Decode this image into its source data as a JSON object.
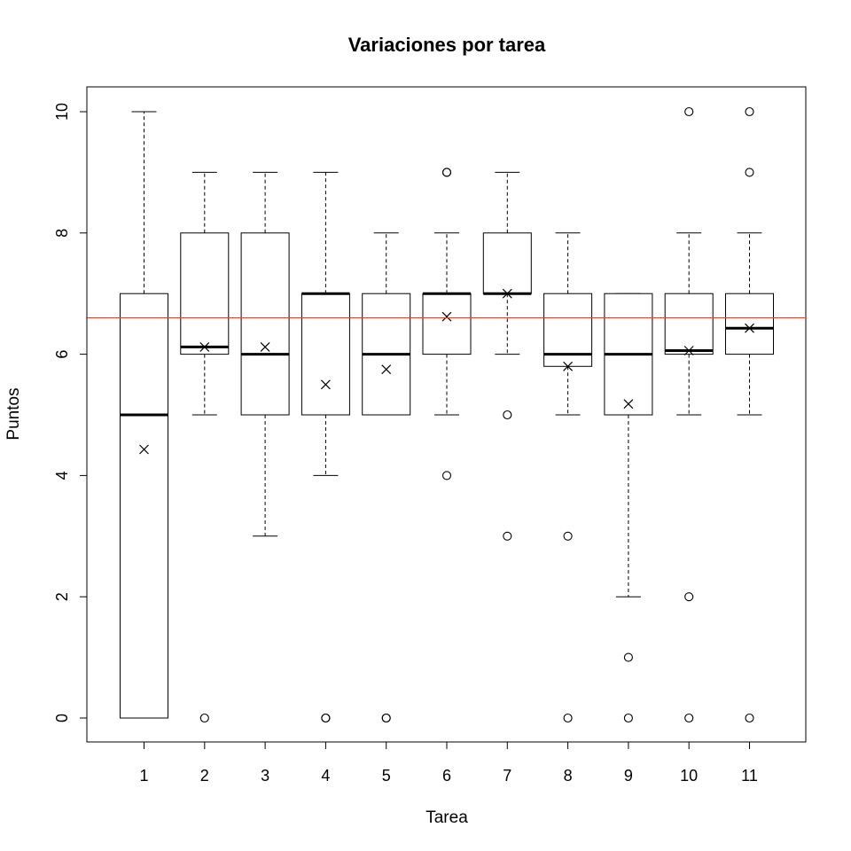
{
  "chart_data": {
    "type": "boxplot",
    "title": "Variaciones por tarea",
    "xlabel": "Tarea",
    "ylabel": "Puntos",
    "categories": [
      "1",
      "2",
      "3",
      "4",
      "5",
      "6",
      "7",
      "8",
      "9",
      "10",
      "11"
    ],
    "ylim": [
      0,
      10
    ],
    "yticks": [
      0,
      2,
      4,
      6,
      8,
      10
    ],
    "reference_line": {
      "y": 6.6,
      "color": "#e8432e"
    },
    "colors": {
      "box": "#000000",
      "outlier": "#000000",
      "mean": "#000000"
    },
    "boxes": [
      {
        "category": "1",
        "whisker_low": 0,
        "q1": 0,
        "median": 5,
        "q3": 7,
        "whisker_high": 10,
        "mean": 4.43,
        "outliers": []
      },
      {
        "category": "2",
        "whisker_low": 5,
        "q1": 6,
        "median": 6.12,
        "q3": 8,
        "whisker_high": 9,
        "mean": 6.12,
        "outliers": [
          0
        ]
      },
      {
        "category": "3",
        "whisker_low": 3,
        "q1": 5,
        "median": 6,
        "q3": 8,
        "whisker_high": 9,
        "mean": 6.12,
        "outliers": []
      },
      {
        "category": "4",
        "whisker_low": 4,
        "q1": 5,
        "median": 7,
        "q3": 7,
        "whisker_high": 9,
        "mean": 5.5,
        "outliers": [
          0,
          0
        ]
      },
      {
        "category": "5",
        "whisker_low": 5,
        "q1": 5,
        "median": 6,
        "q3": 7,
        "whisker_high": 8,
        "mean": 5.75,
        "outliers": [
          0,
          0
        ]
      },
      {
        "category": "6",
        "whisker_low": 5,
        "q1": 6,
        "median": 7,
        "q3": 7,
        "whisker_high": 8,
        "mean": 6.62,
        "outliers": [
          9,
          9,
          4
        ]
      },
      {
        "category": "7",
        "whisker_low": 6,
        "q1": 7,
        "median": 7,
        "q3": 8,
        "whisker_high": 9,
        "mean": 7.0,
        "outliers": [
          5,
          3
        ]
      },
      {
        "category": "8",
        "whisker_low": 5,
        "q1": 5.8,
        "median": 6,
        "q3": 7,
        "whisker_high": 8,
        "mean": 5.8,
        "outliers": [
          3,
          0
        ]
      },
      {
        "category": "9",
        "whisker_low": 2,
        "q1": 5,
        "median": 6,
        "q3": 7,
        "whisker_high": 7,
        "mean": 5.18,
        "outliers": [
          1,
          0
        ]
      },
      {
        "category": "10",
        "whisker_low": 5,
        "q1": 6,
        "median": 6.06,
        "q3": 7,
        "whisker_high": 8,
        "mean": 6.06,
        "outliers": [
          10,
          2,
          0
        ]
      },
      {
        "category": "11",
        "whisker_low": 5,
        "q1": 6,
        "median": 6.43,
        "q3": 7,
        "whisker_high": 8,
        "mean": 6.43,
        "outliers": [
          10,
          9,
          0
        ]
      }
    ],
    "grid": false,
    "legend": "none"
  }
}
